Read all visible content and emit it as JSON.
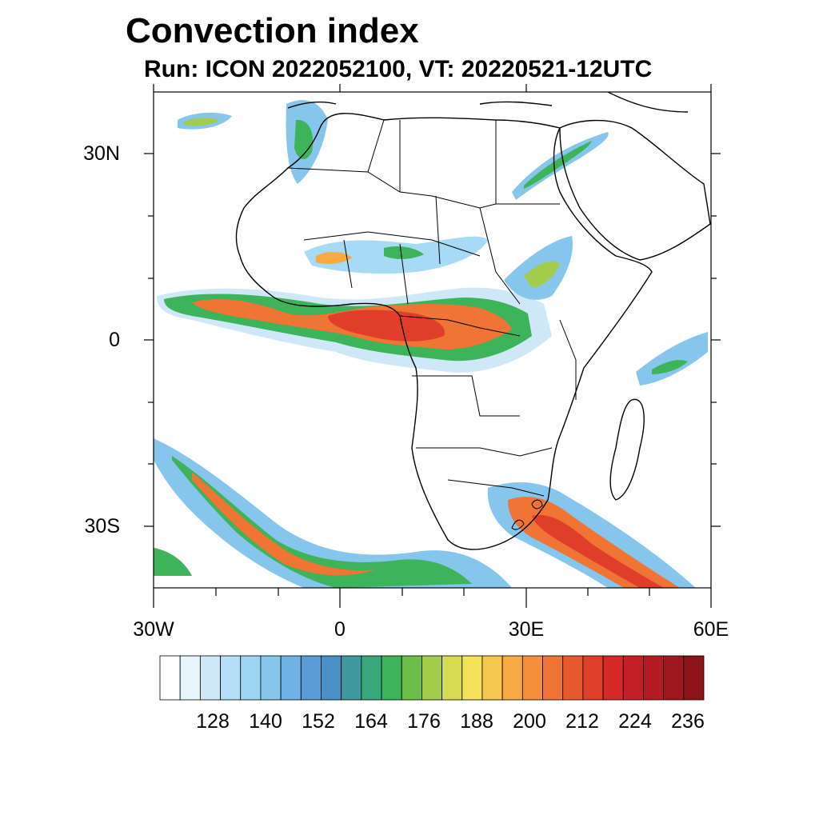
{
  "title": "Convection index",
  "subtitle": "Run: ICON 2022052100,  VT: 20220521-12UTC",
  "lat_labels": [
    "30N",
    "0",
    "30S"
  ],
  "lon_labels": [
    "30W",
    "0",
    "30E",
    "60E"
  ],
  "colorbar": {
    "labels": [
      "128",
      "140",
      "152",
      "164",
      "176",
      "188",
      "200",
      "212",
      "224",
      "236"
    ],
    "colors": [
      "#ffffff",
      "#e8f4fc",
      "#cfe8f8",
      "#b6def6",
      "#9dd6f4",
      "#86c6ec",
      "#6fb3e4",
      "#5b9bd6",
      "#4a8fc6",
      "#3f9aa0",
      "#3aa77a",
      "#3db35a",
      "#6cbd4a",
      "#a4cc4c",
      "#d6dc52",
      "#f3e15a",
      "#f7c64e",
      "#f7aa44",
      "#f48f3c",
      "#f07434",
      "#e85a2e",
      "#df3f2a",
      "#d62a28",
      "#c51f26",
      "#b31a22",
      "#9e171e",
      "#8a1418"
    ]
  }
}
